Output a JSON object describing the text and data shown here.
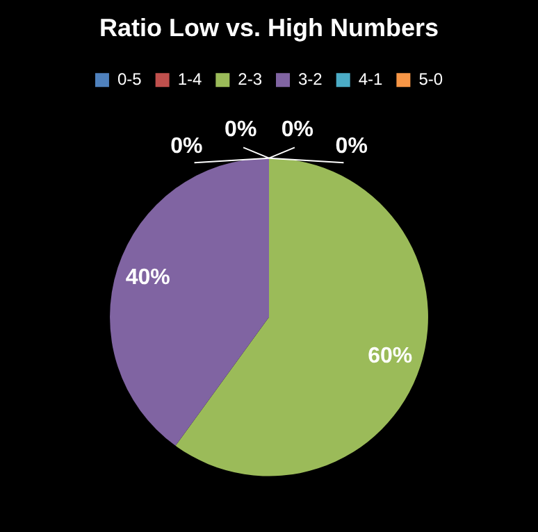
{
  "chart_data": {
    "type": "pie",
    "title": "Ratio Low vs. High Numbers",
    "categories": [
      "0-5",
      "1-4",
      "2-3",
      "3-2",
      "4-1",
      "5-0"
    ],
    "values": [
      0,
      0,
      60,
      40,
      0,
      0
    ],
    "colors": [
      "#4f81bd",
      "#c0504d",
      "#9bbb59",
      "#8064a2",
      "#4bacc6",
      "#f79646"
    ],
    "value_labels": [
      "0%",
      "0%",
      "60%",
      "40%",
      "0%",
      "0%"
    ],
    "legend": "top"
  }
}
